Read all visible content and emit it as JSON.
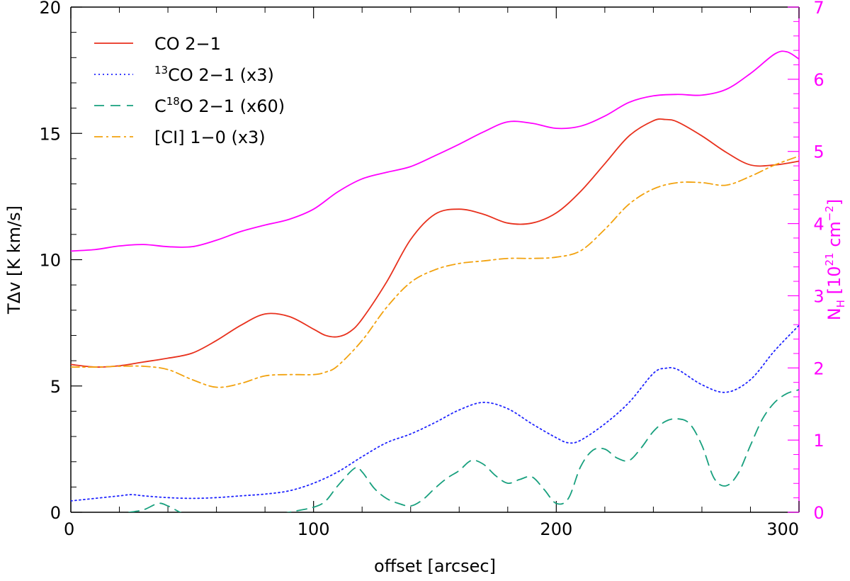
{
  "chart_data": {
    "type": "line",
    "x_axis": {
      "label": "offset [arcsec]",
      "range": [
        0,
        300
      ],
      "ticks": [
        0,
        100,
        200,
        300
      ]
    },
    "y_axis_left": {
      "label": "TΔv [K km/s]",
      "range": [
        0,
        20
      ],
      "ticks": [
        0,
        5,
        10,
        15,
        20
      ]
    },
    "y_axis_right": {
      "label": "N_H [10^21 cm^-2]",
      "label_parts": {
        "base": "N",
        "sub": "H",
        "bracket_open": " [10",
        "sup1": "21",
        "unit": " cm",
        "sup2": "−2",
        "bracket_close": "]"
      },
      "range": [
        0,
        7
      ],
      "ticks": [
        0,
        1,
        2,
        3,
        4,
        5,
        6,
        7
      ],
      "color": "#ff00ff"
    },
    "legend_position": "top-left",
    "legend": [
      {
        "series": "co21",
        "text": "CO 2−1"
      },
      {
        "series": "c13o21",
        "pre_sup": "13",
        "text": "CO 2−1 (x3)"
      },
      {
        "series": "c18o21",
        "text": "C",
        "sup": "18",
        "text_after": "O 2−1 (x60)"
      },
      {
        "series": "ci10",
        "text": "[CI] 1−0 (x3)"
      }
    ],
    "series": [
      {
        "id": "co21",
        "name": "CO 2−1",
        "color": "#e8311d",
        "style": "solid",
        "axis": "left",
        "x": [
          0,
          10,
          20,
          30,
          40,
          50,
          60,
          70,
          80,
          90,
          100,
          105,
          110,
          115,
          120,
          130,
          140,
          150,
          160,
          170,
          180,
          190,
          200,
          210,
          220,
          230,
          240,
          245,
          250,
          260,
          270,
          280,
          290,
          300
        ],
        "y": [
          5.85,
          5.75,
          5.8,
          5.95,
          6.1,
          6.3,
          6.8,
          7.4,
          7.85,
          7.75,
          7.25,
          7.0,
          6.95,
          7.15,
          7.65,
          9.1,
          10.8,
          11.8,
          12.0,
          11.8,
          11.45,
          11.45,
          11.85,
          12.7,
          13.8,
          14.9,
          15.5,
          15.55,
          15.45,
          14.9,
          14.25,
          13.75,
          13.75,
          13.9
        ]
      },
      {
        "id": "c13o21",
        "name": "13CO 2−1 (x3)",
        "color": "#1f24ff",
        "style": "dotted",
        "axis": "left",
        "x": [
          0,
          10,
          20,
          25,
          30,
          40,
          50,
          60,
          70,
          80,
          90,
          100,
          110,
          120,
          130,
          140,
          150,
          160,
          170,
          180,
          190,
          200,
          205,
          210,
          220,
          230,
          240,
          245,
          250,
          260,
          270,
          280,
          290,
          300
        ],
        "y": [
          0.45,
          0.55,
          0.65,
          0.7,
          0.65,
          0.58,
          0.55,
          0.58,
          0.65,
          0.72,
          0.85,
          1.15,
          1.6,
          2.2,
          2.75,
          3.1,
          3.55,
          4.05,
          4.35,
          4.1,
          3.5,
          2.95,
          2.75,
          2.85,
          3.5,
          4.35,
          5.5,
          5.7,
          5.65,
          5.05,
          4.75,
          5.25,
          6.4,
          7.4
        ]
      },
      {
        "id": "c18o21",
        "name": "C18O 2−1 (x60)",
        "color": "#18a07e",
        "style": "dashed",
        "axis": "left",
        "segments": [
          {
            "x": [
              24,
              30,
              36,
              40,
              45,
              50
            ],
            "y": [
              0,
              0.1,
              0.35,
              0.25,
              0.0,
              -0.2
            ]
          },
          {
            "x": [
              80,
              90,
              100,
              105,
              110,
              117,
              120,
              125,
              130,
              135,
              140,
              145,
              150,
              155,
              160,
              165,
              170,
              175,
              180,
              185,
              190,
              195,
              200,
              205,
              210,
              215,
              220,
              225,
              230,
              235,
              240,
              245,
              250,
              255,
              260,
              265,
              270,
              275,
              280,
              285,
              290,
              295,
              300
            ],
            "y": [
              -0.2,
              0.0,
              0.2,
              0.45,
              1.05,
              1.75,
              1.6,
              0.95,
              0.55,
              0.35,
              0.25,
              0.5,
              0.95,
              1.35,
              1.65,
              2.05,
              1.9,
              1.45,
              1.15,
              1.3,
              1.4,
              0.9,
              0.35,
              0.55,
              1.8,
              2.45,
              2.5,
              2.15,
              2.05,
              2.55,
              3.2,
              3.6,
              3.7,
              3.5,
              2.65,
              1.35,
              1.05,
              1.55,
              2.65,
              3.7,
              4.35,
              4.7,
              4.85
            ]
          }
        ]
      },
      {
        "id": "ci10",
        "name": "[CI] 1−0 (x3)",
        "color": "#f2a20e",
        "style": "dashdot",
        "axis": "left",
        "x": [
          0,
          10,
          20,
          30,
          40,
          50,
          60,
          70,
          80,
          90,
          100,
          105,
          110,
          120,
          130,
          140,
          150,
          160,
          170,
          180,
          190,
          200,
          210,
          220,
          230,
          240,
          250,
          260,
          270,
          280,
          290,
          300
        ],
        "y": [
          5.75,
          5.75,
          5.78,
          5.78,
          5.65,
          5.25,
          4.95,
          5.1,
          5.4,
          5.45,
          5.45,
          5.55,
          5.8,
          6.8,
          8.1,
          9.1,
          9.6,
          9.85,
          9.95,
          10.05,
          10.05,
          10.1,
          10.35,
          11.2,
          12.2,
          12.8,
          13.05,
          13.05,
          12.95,
          13.3,
          13.75,
          14.1
        ]
      },
      {
        "id": "nh",
        "name": "N_H",
        "color": "#ff00ff",
        "style": "solid",
        "axis": "right",
        "x": [
          0,
          10,
          20,
          30,
          40,
          50,
          60,
          70,
          80,
          90,
          100,
          110,
          120,
          130,
          140,
          150,
          160,
          170,
          180,
          190,
          200,
          210,
          220,
          230,
          240,
          250,
          260,
          270,
          280,
          290,
          295,
          300
        ],
        "y": [
          3.62,
          3.64,
          3.69,
          3.71,
          3.68,
          3.68,
          3.77,
          3.89,
          3.98,
          4.06,
          4.2,
          4.44,
          4.62,
          4.71,
          4.79,
          4.94,
          5.1,
          5.27,
          5.41,
          5.39,
          5.32,
          5.35,
          5.49,
          5.68,
          5.77,
          5.79,
          5.78,
          5.86,
          6.08,
          6.35,
          6.38,
          6.28
        ]
      }
    ]
  }
}
